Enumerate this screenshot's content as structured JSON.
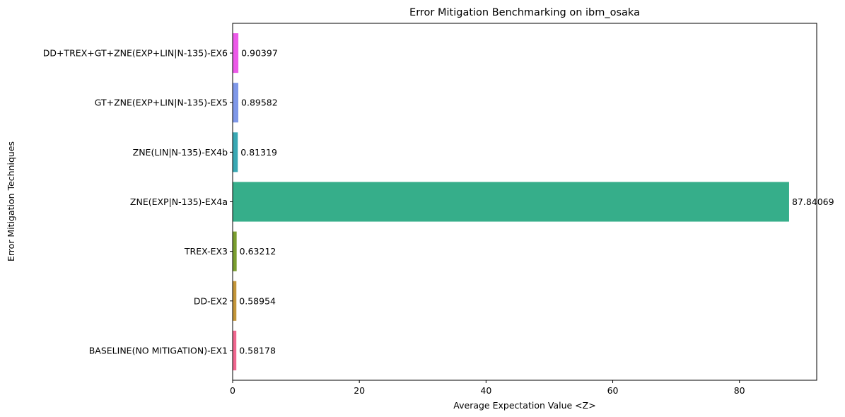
{
  "chart_data": {
    "type": "bar",
    "orientation": "horizontal",
    "title": "Error Mitigation Benchmarking on ibm_osaka",
    "xlabel": "Average Expectation Value <Z>",
    "ylabel": "Error Mitigation Techniques",
    "xlim": [
      0,
      92.2
    ],
    "xticks": [
      0,
      20,
      40,
      60,
      80
    ],
    "grid": false,
    "categories": [
      "BASELINE(NO MITIGATION)-EX1",
      "DD-EX2",
      "TREX-EX3",
      "ZNE(EXP|N-135)-EX4a",
      "ZNE(LIN|N-135)-EX4b",
      "GT+ZNE(EXP+LIN|N-135)-EX5",
      "DD+TREX+GT+ZNE(EXP+LIN|N-135)-EX6"
    ],
    "values": [
      0.58178,
      0.58954,
      0.63212,
      87.84069,
      0.81319,
      0.89582,
      0.90397
    ],
    "value_labels": [
      "0.58178",
      "0.58954",
      "0.63212",
      "87.84069",
      "0.81319",
      "0.89582",
      "0.90397"
    ],
    "colors": [
      "#f0678f",
      "#c4963a",
      "#7a9e2f",
      "#36ae8a",
      "#39a8b3",
      "#7f98e8",
      "#ec5ae8"
    ]
  }
}
